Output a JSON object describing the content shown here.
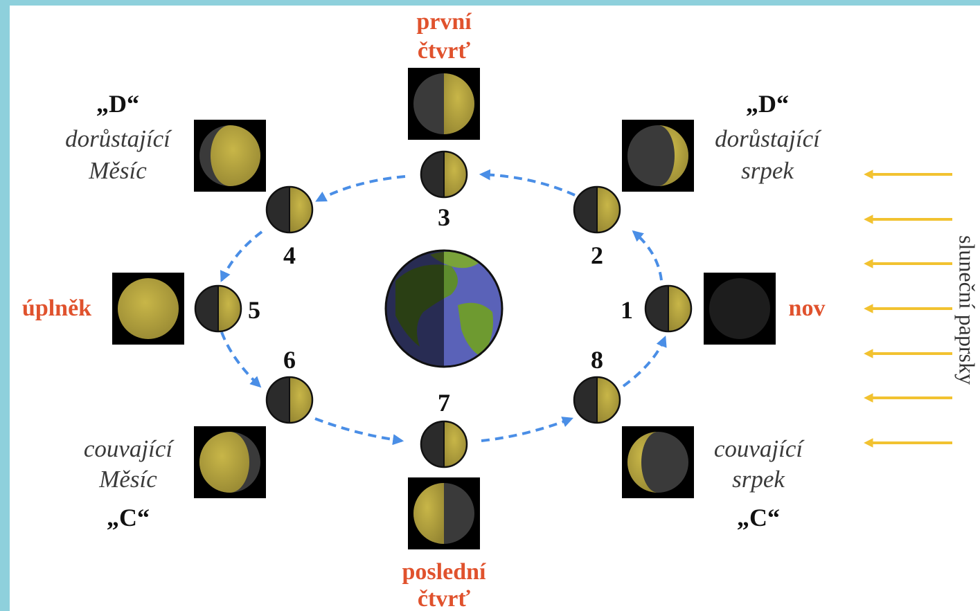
{
  "phases": {
    "prvni_ctvrt": [
      "první",
      "čtvrť"
    ],
    "posledni_ctvrt": [
      "poslední",
      "čtvrť"
    ],
    "uplnek": "úplněk",
    "nov": "nov"
  },
  "crescents": {
    "dorustajici_mesic": {
      "mark": "„D“",
      "lines": [
        "dorůstající",
        "Měsíc"
      ]
    },
    "dorustajici_srpek": {
      "mark": "„D“",
      "lines": [
        "dorůstající",
        "srpek"
      ]
    },
    "couvajici_mesic": {
      "mark": "„C“",
      "lines": [
        "couvající",
        "Měsíc"
      ]
    },
    "couvajici_srpek": {
      "mark": "„C“",
      "lines": [
        "couvající",
        "srpek"
      ]
    }
  },
  "numbers": [
    "1",
    "2",
    "3",
    "4",
    "5",
    "6",
    "7",
    "8"
  ],
  "sun_rays_label": "sluneční paprsky",
  "colors": {
    "background": "#8ed0dc",
    "phase_label": "#e0522d",
    "orbit_arrow": "#4a8ee6",
    "sun_ray": "#f2c230",
    "moon_lit": "#b3a23c",
    "moon_dark": "#2b2b2b"
  }
}
